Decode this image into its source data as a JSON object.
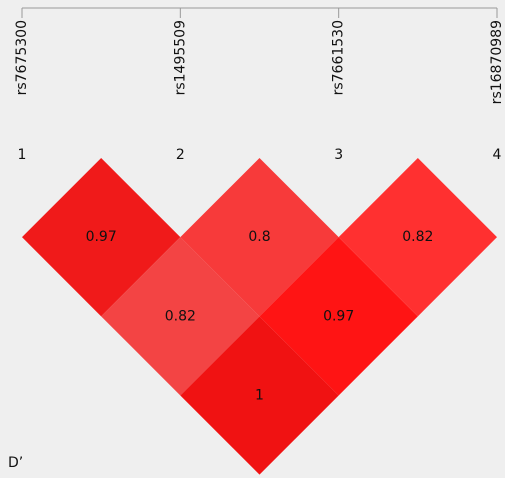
{
  "chart_data": {
    "type": "heatmap",
    "markers": [
      "rs7675300",
      "rs1495509",
      "rs7661530",
      "rs16870989"
    ],
    "marker_numbers": [
      "1",
      "2",
      "3",
      "4"
    ],
    "values": [
      [
        null,
        0.97,
        0.82,
        1
      ],
      [
        null,
        null,
        0.8,
        0.97
      ],
      [
        null,
        null,
        null,
        0.82
      ]
    ],
    "colors": [
      [
        null,
        "#f01a1a",
        "#f34444",
        "#f01212"
      ],
      [
        null,
        null,
        "#f73a3a",
        "#ff1414"
      ],
      [
        null,
        null,
        null,
        "#ff3030"
      ]
    ],
    "measure_label": "D’"
  }
}
